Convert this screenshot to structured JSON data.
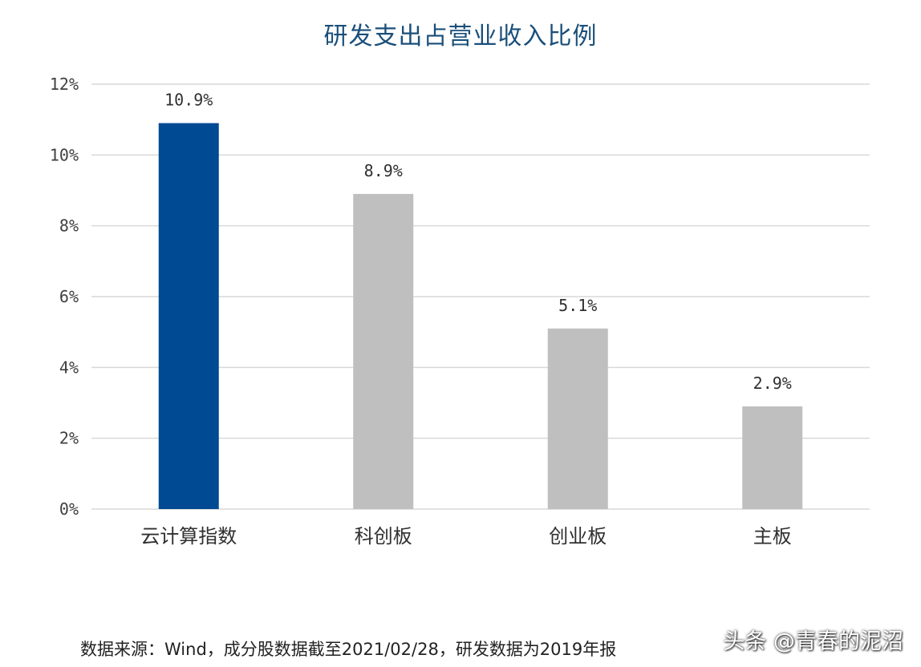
{
  "chart_data": {
    "type": "bar",
    "title": "研发支出占营业收入比例",
    "categories": [
      "云计算指数",
      "科创板",
      "创业板",
      "主板"
    ],
    "values": [
      10.9,
      8.9,
      5.1,
      2.9
    ],
    "data_labels": [
      "10.9%",
      "8.9%",
      "5.1%",
      "2.9%"
    ],
    "y_ticks": [
      0,
      2,
      4,
      6,
      8,
      10,
      12
    ],
    "y_tick_labels": [
      "0%",
      "2%",
      "4%",
      "6%",
      "8%",
      "10%",
      "12%"
    ],
    "ylim": [
      0,
      12
    ],
    "grid": true,
    "legend": "none",
    "colors": [
      "#004a93",
      "#bfbfbf",
      "#bfbfbf",
      "#bfbfbf"
    ],
    "gridline_color": "#d9d9d9"
  },
  "source_note": "数据来源：Wind，成分股数据截至2021/02/28，研发数据为2019年报",
  "watermark": "头条 @青春的泥沼"
}
